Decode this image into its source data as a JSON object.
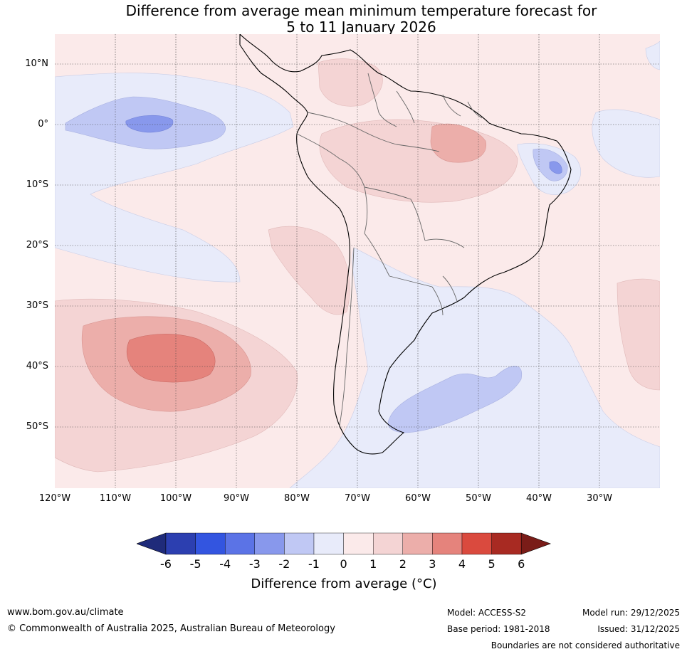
{
  "title_line1": "Difference from average mean minimum temperature forecast for",
  "title_line2": "5 to 11 January 2026",
  "lat_labels": [
    "10°N",
    "0°",
    "10°S",
    "20°S",
    "30°S",
    "40°S",
    "50°S"
  ],
  "lon_labels": [
    "120°W",
    "110°W",
    "100°W",
    "90°W",
    "80°W",
    "70°W",
    "60°W",
    "50°W",
    "40°W",
    "30°W"
  ],
  "colorbar": {
    "ticks": [
      "-6",
      "-5",
      "-4",
      "-3",
      "-2",
      "-1",
      "0",
      "1",
      "2",
      "3",
      "4",
      "5",
      "6"
    ],
    "colors": [
      "#1f2b7a",
      "#2c3fb0",
      "#3355e0",
      "#5b73e6",
      "#8898ec",
      "#c0c8f4",
      "#e8ebfa",
      "#fbeaea",
      "#f4d4d4",
      "#ecaeaa",
      "#e5837c",
      "#da4a3e",
      "#a82a22",
      "#7a1c18"
    ],
    "label": "Difference from average (°C)"
  },
  "footer": {
    "website": "www.bom.gov.au/climate",
    "copyright": "© Commonwealth of Australia 2025, Australian Bureau of Meteorology",
    "model": "Model: ACCESS-S2",
    "base_period": "Base period: 1981-2018",
    "model_run": "Model run: 29/12/2025",
    "issued": "Issued: 31/12/2025",
    "disclaimer": "Boundaries are not considered authoritative"
  }
}
